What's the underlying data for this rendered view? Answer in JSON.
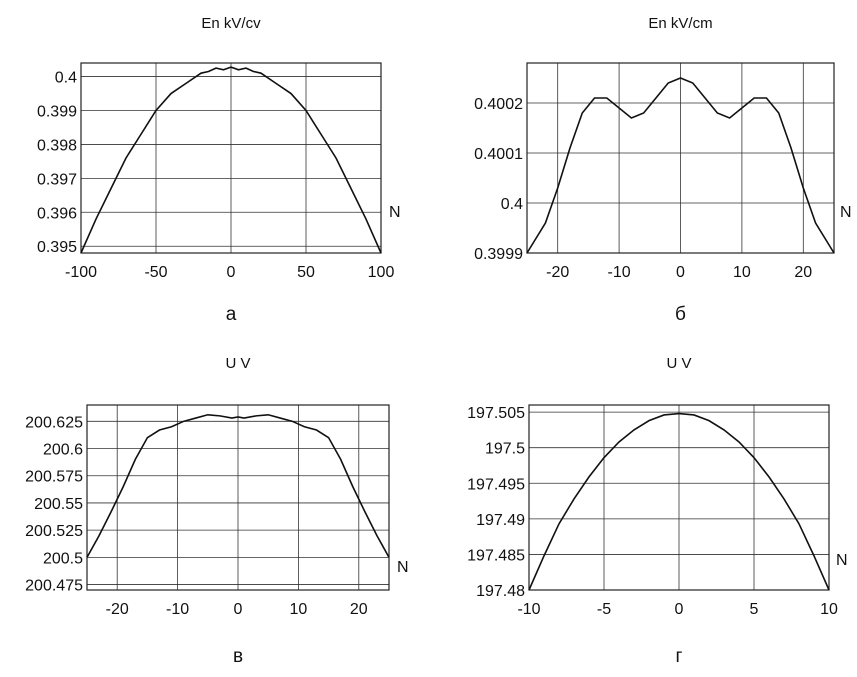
{
  "chart_data": [
    {
      "type": "line",
      "title": "En kV/cv",
      "xlabel": "N",
      "panel_label": "а",
      "xlim": [
        -100,
        100
      ],
      "ylim": [
        0.3948,
        0.4004
      ],
      "xticks": [
        -100,
        -50,
        0,
        50,
        100
      ],
      "xtick_labels": [
        "-100",
        "-50",
        "0",
        "50",
        "100"
      ],
      "yticks": [
        0.395,
        0.396,
        0.397,
        0.398,
        0.399,
        0.4
      ],
      "ytick_labels": [
        "0.395",
        "0.396",
        "0.397",
        "0.398",
        "0.399",
        "0.4"
      ],
      "grid": true,
      "series": [
        {
          "x": [
            -100,
            -90,
            -80,
            -70,
            -60,
            -50,
            -40,
            -30,
            -20,
            -15,
            -10,
            -5,
            0,
            5,
            10,
            15,
            20,
            30,
            40,
            50,
            60,
            70,
            80,
            90,
            100
          ],
          "y": [
            0.3948,
            0.3958,
            0.3967,
            0.3976,
            0.3983,
            0.399,
            0.3995,
            0.3998,
            0.4001,
            0.40015,
            0.40025,
            0.4002,
            0.40028,
            0.4002,
            0.40025,
            0.40015,
            0.4001,
            0.3998,
            0.3995,
            0.399,
            0.3983,
            0.3976,
            0.3967,
            0.3958,
            0.3948
          ]
        }
      ]
    },
    {
      "type": "line",
      "title": "En kV/cm",
      "xlabel": "N",
      "panel_label": "б",
      "xlim": [
        -25,
        25
      ],
      "ylim": [
        0.3999,
        0.40028
      ],
      "xticks": [
        -20,
        -10,
        0,
        10,
        20
      ],
      "xtick_labels": [
        "-20",
        "-10",
        "0",
        "10",
        "20"
      ],
      "yticks": [
        0.3999,
        0.4,
        0.4001,
        0.4002
      ],
      "ytick_labels": [
        "0.3999",
        "0.4",
        "0.4001",
        "0.4002"
      ],
      "grid": true,
      "series": [
        {
          "x": [
            -25,
            -22,
            -20,
            -18,
            -16,
            -14,
            -12,
            -10,
            -8,
            -6,
            -4,
            -2,
            0,
            2,
            4,
            6,
            8,
            10,
            12,
            14,
            16,
            18,
            20,
            22,
            25
          ],
          "y": [
            0.3999,
            0.39996,
            0.40003,
            0.40011,
            0.40018,
            0.40021,
            0.40021,
            0.40019,
            0.40017,
            0.40018,
            0.40021,
            0.40024,
            0.40025,
            0.40024,
            0.40021,
            0.40018,
            0.40017,
            0.40019,
            0.40021,
            0.40021,
            0.40018,
            0.40011,
            0.40003,
            0.39996,
            0.3999
          ]
        }
      ]
    },
    {
      "type": "line",
      "title": "U V",
      "xlabel": "N",
      "panel_label": "в",
      "xlim": [
        -25,
        25
      ],
      "ylim": [
        200.47,
        200.64
      ],
      "xticks": [
        -20,
        -10,
        0,
        10,
        20
      ],
      "xtick_labels": [
        "-20",
        "-10",
        "0",
        "10",
        "20"
      ],
      "yticks": [
        200.475,
        200.5,
        200.525,
        200.55,
        200.575,
        200.6,
        200.625
      ],
      "ytick_labels": [
        "200.475",
        "200.5",
        "200.525",
        "200.55",
        "200.575",
        "200.6",
        "200.625"
      ],
      "grid": true,
      "series": [
        {
          "x": [
            -25,
            -23,
            -21,
            -19,
            -17,
            -15,
            -13,
            -11,
            -9,
            -7,
            -5,
            -3,
            -1,
            0,
            1,
            3,
            5,
            7,
            9,
            11,
            13,
            15,
            17,
            19,
            21,
            23,
            25
          ],
          "y": [
            200.5,
            200.52,
            200.542,
            200.565,
            200.59,
            200.61,
            200.617,
            200.62,
            200.625,
            200.628,
            200.631,
            200.63,
            200.628,
            200.629,
            200.628,
            200.63,
            200.631,
            200.628,
            200.625,
            200.62,
            200.617,
            200.61,
            200.59,
            200.565,
            200.542,
            200.52,
            200.5
          ]
        }
      ]
    },
    {
      "type": "line",
      "title": "U V",
      "xlabel": "N",
      "panel_label": "г",
      "xlim": [
        -10,
        10
      ],
      "ylim": [
        197.48,
        197.506
      ],
      "xticks": [
        -10,
        -5,
        0,
        5,
        10
      ],
      "xtick_labels": [
        "-10",
        "-5",
        "0",
        "5",
        "10"
      ],
      "yticks": [
        197.48,
        197.485,
        197.49,
        197.495,
        197.5,
        197.505
      ],
      "ytick_labels": [
        "197.48",
        "197.485",
        "197.49",
        "197.495",
        "197.5",
        "197.505"
      ],
      "grid": true,
      "series": [
        {
          "x": [
            -10,
            -9,
            -8,
            -7,
            -6,
            -5,
            -4,
            -3,
            -2,
            -1,
            0,
            1,
            2,
            3,
            4,
            5,
            6,
            7,
            8,
            9,
            10
          ],
          "y": [
            197.48,
            197.4848,
            197.4893,
            197.4928,
            197.4959,
            197.4986,
            197.5008,
            197.5025,
            197.5038,
            197.5046,
            197.5048,
            197.5046,
            197.5038,
            197.5025,
            197.5008,
            197.4986,
            197.4959,
            197.4928,
            197.4893,
            197.4848,
            197.48
          ]
        }
      ]
    }
  ]
}
